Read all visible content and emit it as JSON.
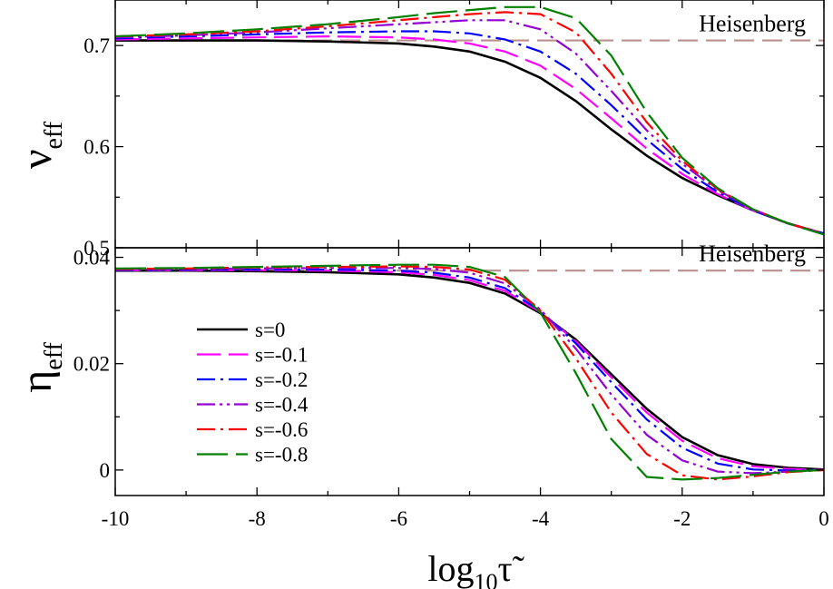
{
  "chart_data": [
    {
      "type": "line",
      "panel": "top",
      "ylabel": "ν",
      "ylabel_sub": "eff",
      "xlabel": "",
      "xlim": [
        -10,
        0
      ],
      "ylim": [
        0.5,
        0.745
      ],
      "yticks": [
        0.5,
        0.6,
        0.7
      ],
      "ytick_labels": [
        "0.5",
        "0.6",
        "0.7"
      ],
      "grid": false,
      "annotation": "Heisenberg",
      "reference": {
        "y": 0.705,
        "color": "#bc8f8f"
      },
      "series": [
        {
          "name": "s=0",
          "color": "#000000",
          "dash": "solid",
          "x": [
            -10,
            -9,
            -8,
            -7,
            -6,
            -5.5,
            -5,
            -4.5,
            -4,
            -3.5,
            -3,
            -2.5,
            -2,
            -1.5,
            -1,
            -0.5,
            0
          ],
          "y": [
            0.705,
            0.705,
            0.705,
            0.704,
            0.702,
            0.699,
            0.694,
            0.684,
            0.668,
            0.645,
            0.617,
            0.591,
            0.569,
            0.552,
            0.537,
            0.524,
            0.514
          ]
        },
        {
          "name": "s=-0.1",
          "color": "#ff00ff",
          "dash": "dash",
          "x": [
            -10,
            -9,
            -8,
            -7,
            -6,
            -5.5,
            -5,
            -4.5,
            -4,
            -3.5,
            -3,
            -2.5,
            -2,
            -1.5,
            -1,
            -0.5,
            0
          ],
          "y": [
            0.706,
            0.707,
            0.708,
            0.709,
            0.708,
            0.706,
            0.702,
            0.694,
            0.68,
            0.657,
            0.628,
            0.598,
            0.573,
            0.553,
            0.537,
            0.524,
            0.514
          ]
        },
        {
          "name": "s=-0.2",
          "color": "#0000ff",
          "dash": "dashdot",
          "x": [
            -10,
            -9,
            -8,
            -7,
            -6,
            -5.5,
            -5,
            -4.5,
            -4,
            -3.5,
            -3,
            -2.5,
            -2,
            -1.5,
            -1,
            -0.5,
            0
          ],
          "y": [
            0.707,
            0.709,
            0.711,
            0.713,
            0.714,
            0.714,
            0.712,
            0.706,
            0.694,
            0.672,
            0.641,
            0.607,
            0.578,
            0.555,
            0.537,
            0.524,
            0.514
          ]
        },
        {
          "name": "s=-0.4",
          "color": "#9400d3",
          "dash": "dashdotdot",
          "x": [
            -10,
            -9,
            -8,
            -7,
            -6,
            -5.5,
            -5,
            -4.5,
            -4,
            -3.5,
            -3,
            -2.5,
            -2,
            -1.5,
            -1,
            -0.5,
            0
          ],
          "y": [
            0.708,
            0.71,
            0.713,
            0.717,
            0.721,
            0.723,
            0.725,
            0.725,
            0.716,
            0.692,
            0.655,
            0.616,
            0.583,
            0.557,
            0.538,
            0.524,
            0.514
          ]
        },
        {
          "name": "s=-0.6",
          "color": "#ff0000",
          "dash": "dashdot",
          "x": [
            -10,
            -9,
            -8,
            -7,
            -6,
            -5.5,
            -5,
            -4.5,
            -4,
            -3.5,
            -3,
            -2.5,
            -2,
            -1.5,
            -1,
            -0.5,
            0
          ],
          "y": [
            0.709,
            0.711,
            0.714,
            0.719,
            0.725,
            0.728,
            0.731,
            0.733,
            0.731,
            0.713,
            0.672,
            0.624,
            0.586,
            0.558,
            0.538,
            0.524,
            0.514
          ]
        },
        {
          "name": "s=-0.8",
          "color": "#008000",
          "dash": "longdash",
          "x": [
            -10,
            -9,
            -8,
            -7,
            -6,
            -5.5,
            -5,
            -4.5,
            -4,
            -3.5,
            -3,
            -2.5,
            -2,
            -1.5,
            -1,
            -0.5,
            0
          ],
          "y": [
            0.709,
            0.712,
            0.716,
            0.721,
            0.728,
            0.732,
            0.735,
            0.738,
            0.738,
            0.727,
            0.69,
            0.634,
            0.589,
            0.559,
            0.538,
            0.524,
            0.513
          ]
        }
      ]
    },
    {
      "type": "line",
      "panel": "bottom",
      "ylabel": "η",
      "ylabel_sub": "eff",
      "xlabel": "log",
      "xlabel_sub": "10",
      "xlabel_symbol": "τ̃",
      "xlim": [
        -10,
        0
      ],
      "ylim": [
        -0.0048,
        0.0418
      ],
      "xticks": [
        -10,
        -8,
        -6,
        -4,
        -2,
        0
      ],
      "xtick_labels": [
        "-10",
        "-8",
        "-6",
        "-4",
        "-2",
        "0"
      ],
      "yticks": [
        0,
        0.02,
        0.04
      ],
      "ytick_labels": [
        "0",
        "0.02",
        "0.04"
      ],
      "grid": false,
      "annotation": "Heisenberg",
      "legend": "left",
      "reference": {
        "y": 0.0375,
        "color": "#bc8f8f"
      },
      "series": [
        {
          "name": "s=0",
          "color": "#000000",
          "dash": "solid",
          "x": [
            -10,
            -9,
            -8,
            -7,
            -6,
            -5.5,
            -5,
            -4.5,
            -4,
            -3.5,
            -3,
            -2.5,
            -2,
            -1.5,
            -1,
            -0.5,
            0
          ],
          "y": [
            0.0375,
            0.0375,
            0.0374,
            0.0372,
            0.0368,
            0.0362,
            0.0352,
            0.0332,
            0.0295,
            0.0245,
            0.018,
            0.0115,
            0.0062,
            0.0028,
            0.0011,
            0.0004,
            0.0001
          ]
        },
        {
          "name": "s=-0.1",
          "color": "#ff00ff",
          "dash": "dash",
          "x": [
            -10,
            -9,
            -8,
            -7,
            -6,
            -5.5,
            -5,
            -4.5,
            -4,
            -3.5,
            -3,
            -2.5,
            -2,
            -1.5,
            -1,
            -0.5,
            0
          ],
          "y": [
            0.0376,
            0.0376,
            0.0376,
            0.0375,
            0.0372,
            0.0367,
            0.0357,
            0.0337,
            0.0297,
            0.0242,
            0.0174,
            0.0108,
            0.0055,
            0.0022,
            0.0007,
            0.0002,
            0.0
          ]
        },
        {
          "name": "s=-0.2",
          "color": "#0000ff",
          "dash": "dashdot",
          "x": [
            -10,
            -9,
            -8,
            -7,
            -6,
            -5.5,
            -5,
            -4.5,
            -4,
            -3.5,
            -3,
            -2.5,
            -2,
            -1.5,
            -1,
            -0.5,
            0
          ],
          "y": [
            0.0376,
            0.0377,
            0.0377,
            0.0377,
            0.0375,
            0.0371,
            0.0362,
            0.0342,
            0.0299,
            0.0238,
            0.0165,
            0.0095,
            0.0042,
            0.0012,
            0.0001,
            -0.0001,
            0.0
          ]
        },
        {
          "name": "s=-0.4",
          "color": "#9400d3",
          "dash": "dashdotdot",
          "x": [
            -10,
            -9,
            -8,
            -7,
            -6,
            -5.5,
            -5,
            -4.5,
            -4,
            -3.5,
            -3,
            -2.5,
            -2,
            -1.5,
            -1,
            -0.5,
            0
          ],
          "y": [
            0.0377,
            0.0378,
            0.0379,
            0.038,
            0.038,
            0.0378,
            0.0371,
            0.0351,
            0.0302,
            0.0228,
            0.0142,
            0.0066,
            0.0018,
            -0.0003,
            -0.0006,
            -0.0003,
            0.0
          ]
        },
        {
          "name": "s=-0.6",
          "color": "#ff0000",
          "dash": "dashdot",
          "x": [
            -10,
            -9,
            -8,
            -7,
            -6,
            -5.5,
            -5,
            -4.5,
            -4,
            -3.5,
            -3,
            -2.5,
            -2,
            -1.5,
            -1,
            -0.5,
            0
          ],
          "y": [
            0.0378,
            0.0379,
            0.0381,
            0.0382,
            0.0383,
            0.0382,
            0.0377,
            0.0358,
            0.03,
            0.021,
            0.0108,
            0.003,
            -0.001,
            -0.0018,
            -0.0012,
            -0.0004,
            0.0
          ]
        },
        {
          "name": "s=-0.8",
          "color": "#008000",
          "dash": "longdash",
          "x": [
            -10,
            -9,
            -8,
            -7,
            -6,
            -5.5,
            -5,
            -4.5,
            -4,
            -3.5,
            -3,
            -2.5,
            -2,
            -1.5,
            -1,
            -0.5,
            0
          ],
          "y": [
            0.0379,
            0.038,
            0.0382,
            0.0384,
            0.0386,
            0.0386,
            0.0382,
            0.0363,
            0.0296,
            0.0182,
            0.0058,
            -0.0013,
            -0.0018,
            -0.0015,
            -0.0009,
            -0.0003,
            0.0
          ]
        }
      ]
    }
  ]
}
